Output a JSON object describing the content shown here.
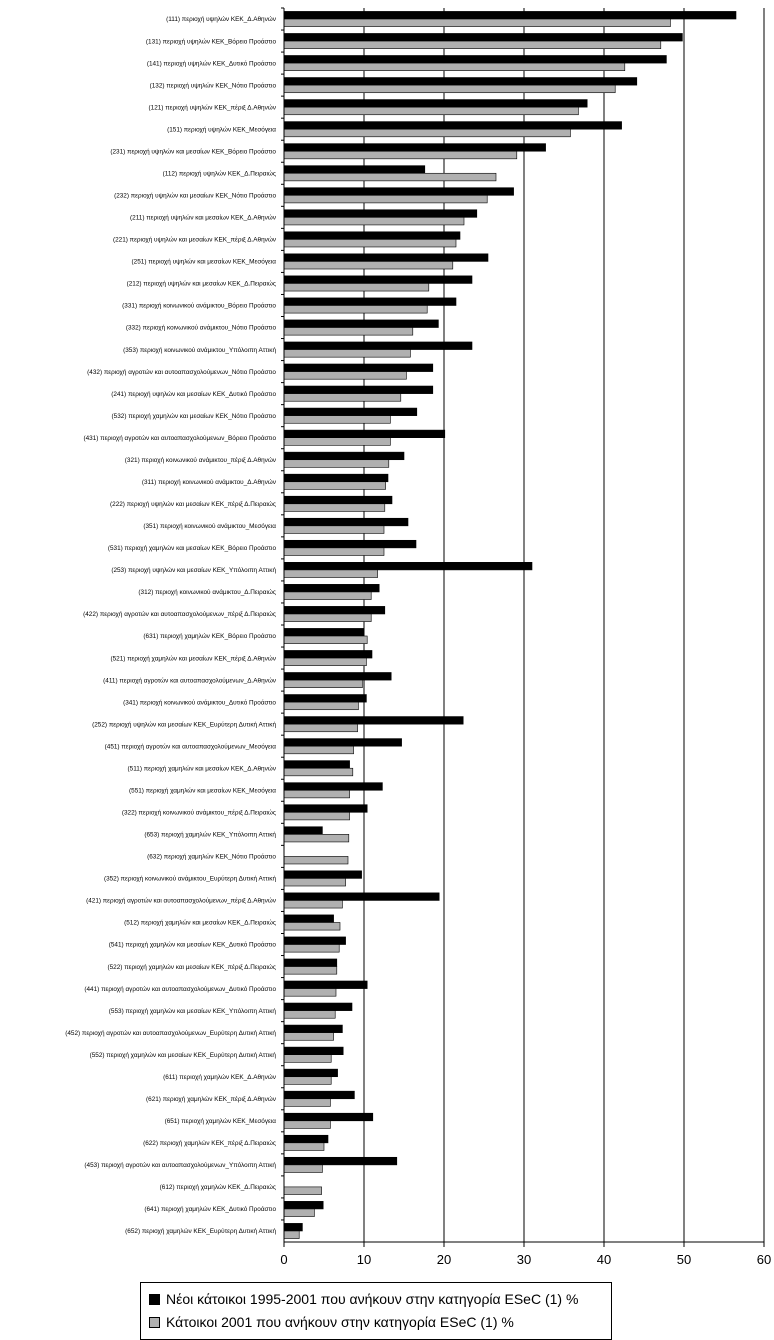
{
  "chart_data": {
    "type": "bar",
    "orientation": "horizontal",
    "xlim": [
      0,
      60
    ],
    "x_ticks": [
      "0",
      "10",
      "20",
      "30",
      "40",
      "50",
      "60"
    ],
    "gridlines": true,
    "legend_position": "bottom",
    "categories": [
      "(111) περιοχή υψηλών ΚΕΚ_Δ.Αθηνών",
      "(131) περιοχή υψηλών ΚΕΚ_Βόρειο Προάστιο",
      "(141) περιοχή υψηλών ΚΕΚ_Δυτικό Προάστιο",
      "(132) περιοχή υψηλών ΚΕΚ_Νότιο Προάστιο",
      "(121) περιοχή υψηλών ΚΕΚ_πέριξ Δ.Αθηνών",
      "(151) περιοχή υψηλών ΚΕΚ_Μεσόγεια",
      "(231) περιοχή υψηλών και μεσαίων ΚΕΚ_Βόρειο Προάστιο",
      "(112) περιοχή υψηλών ΚΕΚ_Δ.Πειραιώς",
      "(232) περιοχή υψηλών και μεσαίων ΚΕΚ_Νότιο Προάστιο",
      "(211) περιοχή υψηλών και μεσαίων ΚΕΚ_Δ.Αθηνών",
      "(221) περιοχή υψηλών και μεσαίων ΚΕΚ_πέριξ Δ.Αθηνών",
      "(251) περιοχή υψηλών και μεσαίων ΚΕΚ_Μεσόγεια",
      "(212) περιοχή υψηλών και μεσαίων ΚΕΚ_Δ.Πειραιώς",
      "(331) περιοχή κοινωνικού ανάμικτου_Βόρειο Προάστιο",
      "(332) περιοχή κοινωνικού ανάμικτου_Νότιο Προάστιο",
      "(353) περιοχή κοινωνικού ανάμικτου_Υπόλοιπη Αττική",
      "(432) περιοχή αγροτών και αυτοαπασχολούμενων_Νότιο Προάστιο",
      "(241) περιοχή υψηλών και μεσαίων ΚΕΚ_Δυτικό Προάστιο",
      "(532) περιοχή χαμηλών και μεσαίων ΚΕΚ_Νότιο Προάστιο",
      "(431) περιοχή αγροτών και αυτοαπασχολούμενων_Βόρειο Προάστιο",
      "(321) περιοχή κοινωνικού ανάμικτου_πέριξ Δ.Αθηνών",
      "(311) περιοχή κοινωνικού ανάμικτου_Δ.Αθηνών",
      "(222) περιοχή υψηλών και μεσαίων ΚΕΚ_πέριξ Δ.Πειραιώς",
      "(351) περιοχή κοινωνικού ανάμικτου_Μεσόγεια",
      "(531) περιοχή χαμηλών και μεσαίων ΚΕΚ_Βόρειο Προάστιο",
      "(253) περιοχή υψηλών και μεσαίων ΚΕΚ_Υπόλοιπη Αττική",
      "(312) περιοχή κοινωνικού ανάμικτου_Δ.Πειραιώς",
      "(422) περιοχή αγροτών και αυτοαπασχολούμενων_πέριξ Δ.Πειραιώς",
      "(631) περιοχή χαμηλών ΚΕΚ_Βόρειο Προάστιο",
      "(521) περιοχή χαμηλών και μεσαίων ΚΕΚ_πέριξ Δ.Αθηνών",
      "(411) περιοχή αγροτών και αυτοαπασχολούμενων_Δ.Αθηνών",
      "(341) περιοχή κοινωνικού ανάμικτου_Δυτικό Προάστιο",
      "(252) περιοχή υψηλών και μεσαίων ΚΕΚ_Ευρύτερη Δυτική Αττική",
      "(451) περιοχή αγροτών και αυτοαπασχολούμενων_Μεσόγεια",
      "(511) περιοχή χαμηλών και μεσαίων ΚΕΚ_Δ.Αθηνών",
      "(551) περιοχή χαμηλών και μεσαίων ΚΕΚ_Μεσόγεια",
      "(322) περιοχή κοινωνικού ανάμικτου_πέριξ Δ.Πειραιώς",
      "(653) περιοχή χαμηλών ΚΕΚ_Υπόλοιπη Αττική",
      "(632) περιοχή χαμηλών ΚΕΚ_Νότιο Προάστιο",
      "(352) περιοχή κοινωνικού ανάμικτου_Ευρύτερη Δυτική Αττική",
      "(421) περιοχή αγροτών και αυτοαπασχολούμενων_πέριξ Δ.Αθηνών",
      "(512) περιοχή χαμηλών και μεσαίων ΚΕΚ_Δ.Πειραιώς",
      "(541) περιοχή χαμηλών και μεσαίων ΚΕΚ_Δυτικό Προάστιο",
      "(522) περιοχή χαμηλών και μεσαίων ΚΕΚ_πέριξ Δ.Πειραιώς",
      "(441) περιοχή αγροτών και αυτοαπασχολούμενων_Δυτικό Προάστιο",
      "(553) περιοχή χαμηλών και μεσαίων ΚΕΚ_Υπόλοιπη Αττική",
      "(452) περιοχή αγροτών και αυτοαπασχολούμενων_Ευρύτερη Δυτική Αττική",
      "(552) περιοχή χαμηλών και μεσαίων ΚΕΚ_Ευρύτερη Δυτική Αττική",
      "(611) περιοχή χαμηλών ΚΕΚ_Δ.Αθηνών",
      "(621) περιοχή χαμηλών ΚΕΚ_πέριξ Δ.Αθηνών",
      "(651) περιοχή χαμηλών ΚΕΚ_Μεσόγεια",
      "(622) περιοχή χαμηλών ΚΕΚ_πέριξ Δ.Πειραιώς",
      "(453) περιοχή αγροτών και αυτοαπασχολούμενων_Υπόλοιπη Αττική",
      "(612) περιοχή χαμηλών ΚΕΚ_Δ.Πειραιώς",
      "(641) περιοχή χαμηλών ΚΕΚ_Δυτικό Προάστιο",
      "(652) περιοχή χαμηλών ΚΕΚ_Ευρύτερη Δυτική Αττική"
    ],
    "series": [
      {
        "name": "Νέοι κάτοικοι 1995-2001 που ανήκουν στην κατηγορία ESeC (1) %",
        "color": "#000000",
        "values": [
          56.5,
          49.8,
          47.8,
          44.1,
          37.9,
          42.2,
          32.7,
          17.6,
          28.7,
          24.1,
          22.0,
          25.5,
          23.5,
          21.5,
          19.3,
          23.5,
          18.6,
          18.6,
          16.6,
          20.1,
          15.0,
          13.0,
          13.5,
          15.5,
          16.5,
          31.0,
          11.9,
          12.6,
          10.0,
          11.0,
          13.4,
          10.3,
          22.4,
          14.7,
          8.2,
          12.3,
          10.4,
          4.8,
          0.0,
          9.7,
          19.4,
          6.2,
          7.7,
          6.6,
          10.4,
          8.5,
          7.3,
          7.4,
          6.7,
          8.8,
          11.1,
          5.5,
          14.1,
          0.0,
          4.9,
          2.3
        ]
      },
      {
        "name": "Κάτοικοι 2001 που ανήκουν στην κατηγορία ESeC (1) %",
        "color": "#b0b0b0",
        "values": [
          48.3,
          47.1,
          42.6,
          41.4,
          36.8,
          35.8,
          29.1,
          26.5,
          25.4,
          22.5,
          21.5,
          21.1,
          18.1,
          17.9,
          16.1,
          15.8,
          15.3,
          14.6,
          13.3,
          13.3,
          13.1,
          12.7,
          12.6,
          12.5,
          12.5,
          11.7,
          10.9,
          10.9,
          10.4,
          10.3,
          9.8,
          9.3,
          9.2,
          8.7,
          8.6,
          8.2,
          8.2,
          8.1,
          8.0,
          7.7,
          7.3,
          7.0,
          6.9,
          6.6,
          6.5,
          6.4,
          6.2,
          5.9,
          5.9,
          5.8,
          5.8,
          5.0,
          4.8,
          4.7,
          3.8,
          1.9
        ]
      }
    ]
  }
}
